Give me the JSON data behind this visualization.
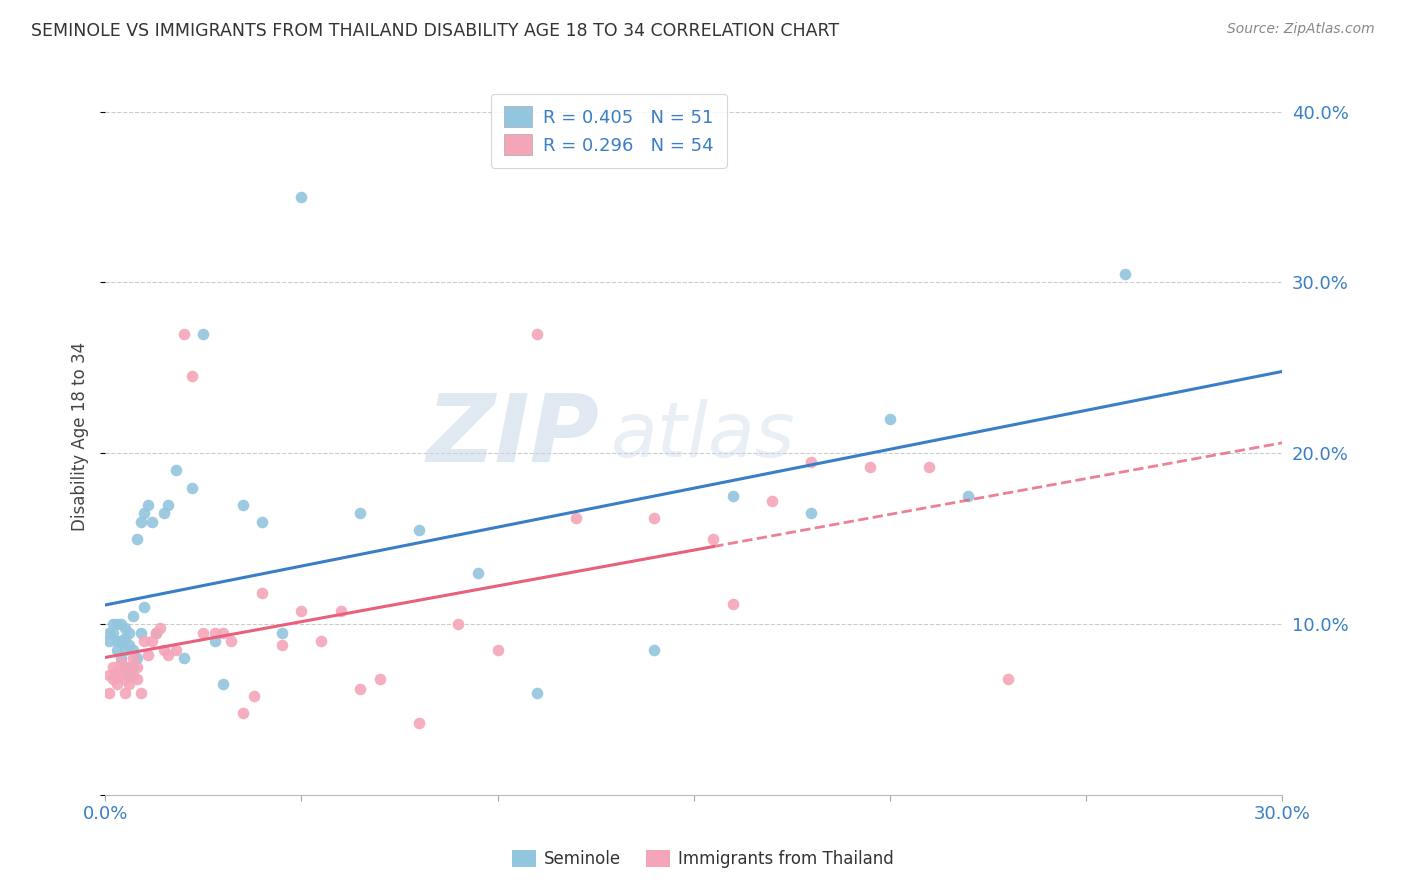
{
  "title": "SEMINOLE VS IMMIGRANTS FROM THAILAND DISABILITY AGE 18 TO 34 CORRELATION CHART",
  "source": "Source: ZipAtlas.com",
  "ylabel": "Disability Age 18 to 34",
  "xlim": [
    0.0,
    0.3
  ],
  "ylim": [
    0.0,
    0.42
  ],
  "xticks": [
    0.0,
    0.05,
    0.1,
    0.15,
    0.2,
    0.25,
    0.3
  ],
  "yticks": [
    0.0,
    0.1,
    0.2,
    0.3,
    0.4
  ],
  "blue_color": "#92c5de",
  "pink_color": "#f4a5b8",
  "blue_line_color": "#3a7ec6",
  "pink_line_color": "#e8607a",
  "watermark_zip": "ZIP",
  "watermark_atlas": "atlas",
  "seminole_x": [
    0.001,
    0.001,
    0.002,
    0.002,
    0.003,
    0.003,
    0.003,
    0.004,
    0.004,
    0.004,
    0.005,
    0.005,
    0.005,
    0.005,
    0.006,
    0.006,
    0.006,
    0.007,
    0.007,
    0.007,
    0.008,
    0.008,
    0.009,
    0.009,
    0.01,
    0.01,
    0.011,
    0.012,
    0.013,
    0.015,
    0.016,
    0.018,
    0.02,
    0.022,
    0.025,
    0.028,
    0.03,
    0.035,
    0.04,
    0.045,
    0.05,
    0.065,
    0.08,
    0.095,
    0.11,
    0.14,
    0.16,
    0.18,
    0.2,
    0.22,
    0.26
  ],
  "seminole_y": [
    0.09,
    0.095,
    0.095,
    0.1,
    0.085,
    0.09,
    0.1,
    0.08,
    0.09,
    0.1,
    0.075,
    0.085,
    0.092,
    0.098,
    0.07,
    0.088,
    0.095,
    0.075,
    0.085,
    0.105,
    0.08,
    0.15,
    0.095,
    0.16,
    0.11,
    0.165,
    0.17,
    0.16,
    0.095,
    0.165,
    0.17,
    0.19,
    0.08,
    0.18,
    0.27,
    0.09,
    0.065,
    0.17,
    0.16,
    0.095,
    0.35,
    0.165,
    0.155,
    0.13,
    0.06,
    0.085,
    0.175,
    0.165,
    0.22,
    0.175,
    0.305
  ],
  "thailand_x": [
    0.001,
    0.001,
    0.002,
    0.002,
    0.003,
    0.003,
    0.004,
    0.004,
    0.005,
    0.005,
    0.005,
    0.006,
    0.006,
    0.007,
    0.007,
    0.008,
    0.008,
    0.009,
    0.01,
    0.011,
    0.012,
    0.013,
    0.014,
    0.015,
    0.016,
    0.018,
    0.02,
    0.022,
    0.025,
    0.028,
    0.03,
    0.032,
    0.035,
    0.038,
    0.04,
    0.045,
    0.05,
    0.055,
    0.06,
    0.065,
    0.07,
    0.08,
    0.09,
    0.1,
    0.11,
    0.12,
    0.14,
    0.155,
    0.16,
    0.17,
    0.18,
    0.195,
    0.21,
    0.23
  ],
  "thailand_y": [
    0.06,
    0.07,
    0.068,
    0.075,
    0.065,
    0.072,
    0.07,
    0.078,
    0.06,
    0.068,
    0.075,
    0.065,
    0.075,
    0.07,
    0.08,
    0.068,
    0.075,
    0.06,
    0.09,
    0.082,
    0.09,
    0.095,
    0.098,
    0.085,
    0.082,
    0.085,
    0.27,
    0.245,
    0.095,
    0.095,
    0.095,
    0.09,
    0.048,
    0.058,
    0.118,
    0.088,
    0.108,
    0.09,
    0.108,
    0.062,
    0.068,
    0.042,
    0.1,
    0.085,
    0.27,
    0.162,
    0.162,
    0.15,
    0.112,
    0.172,
    0.195,
    0.192,
    0.192,
    0.068
  ],
  "pink_line_solid_end": 0.155,
  "legend_label_blue": "R = 0.405   N = 51",
  "legend_label_pink": "R = 0.296   N = 54"
}
